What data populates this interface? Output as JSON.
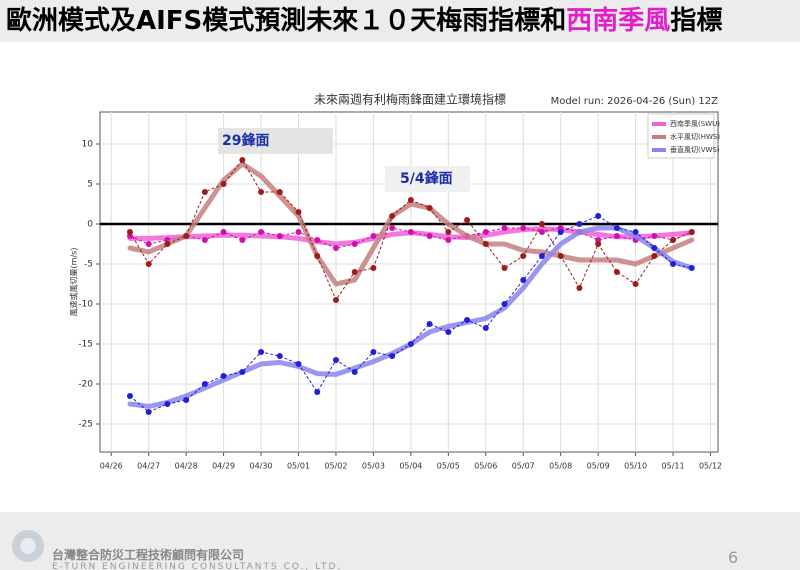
{
  "header": {
    "title": "歐洲模式及AIFS模式預測未來１０天梅雨指標和",
    "title_highlight": "西南季風",
    "title_end": "指標"
  },
  "chart_data": {
    "type": "line",
    "title": "未來兩週有利梅雨鋒面建立環境指標",
    "subtitle": "Model run: 2026-04-26 (Sun) 12Z",
    "y_label": "風速或風切量(m/s)",
    "annotations": [
      "29鋒面",
      "5/4鋒面"
    ],
    "x": [
      0.5,
      1,
      1.5,
      2,
      2.5,
      3,
      3.5,
      4,
      4.5,
      5,
      5.5,
      6,
      6.5,
      7,
      7.5,
      8,
      8.5,
      9,
      9.5,
      10,
      10.5,
      11,
      11.5,
      12,
      12.5,
      13,
      13.5,
      14,
      14.5,
      15,
      15.5
    ],
    "xlim": [
      -0.3,
      16.2
    ],
    "xticks": [
      {
        "value": 0,
        "label": "04/26"
      },
      {
        "value": 1,
        "label": "04/27"
      },
      {
        "value": 2,
        "label": "04/28"
      },
      {
        "value": 3,
        "label": "04/29"
      },
      {
        "value": 4,
        "label": "04/30"
      },
      {
        "value": 5,
        "label": "05/01"
      },
      {
        "value": 6,
        "label": "05/02"
      },
      {
        "value": 7,
        "label": "05/03"
      },
      {
        "value": 8,
        "label": "05/04"
      },
      {
        "value": 9,
        "label": "05/05"
      },
      {
        "value": 10,
        "label": "05/06"
      },
      {
        "value": 11,
        "label": "05/07"
      },
      {
        "value": 12,
        "label": "05/08"
      },
      {
        "value": 13,
        "label": "05/09"
      },
      {
        "value": 14,
        "label": "05/10"
      },
      {
        "value": 15,
        "label": "05/11"
      },
      {
        "value": 16,
        "label": "05/12"
      }
    ],
    "ylim": [
      -28.5,
      14
    ],
    "yticks": [
      10,
      5,
      0,
      -5,
      -10,
      -15,
      -20,
      -25
    ],
    "grid": true,
    "legend": "upper right",
    "series": [
      {
        "name": "西南季風(SWU)",
        "color": "#f060d8",
        "point_color": "#d010b0",
        "values": [
          -1.8,
          -1.8,
          -1.7,
          -1.6,
          -1.5,
          -1.4,
          -1.4,
          -1.5,
          -1.6,
          -1.8,
          -2.2,
          -2.5,
          -2.3,
          -1.8,
          -1.3,
          -1.1,
          -1.3,
          -1.6,
          -1.7,
          -1.4,
          -1,
          -0.7,
          -0.6,
          -0.7,
          -1,
          -1.3,
          -1.6,
          -1.6,
          -1.5,
          -1.3,
          -1.1
        ],
        "points": [
          -1.5,
          -2.5,
          -2,
          -1.5,
          -2,
          -1,
          -2,
          -1,
          -1.5,
          -1,
          -2,
          -3,
          -2.5,
          -1.5,
          -0.5,
          -1,
          -1.5,
          -2,
          -1.5,
          -1,
          -0.5,
          -0.5,
          -1,
          -0.5,
          -1,
          -2,
          -1.5,
          -2,
          -1.5,
          -2,
          -1
        ]
      },
      {
        "name": "水平風切(HWS)",
        "color": "#c48080",
        "point_color": "#a01c1c",
        "values": [
          -3,
          -3.5,
          -2.5,
          -1.5,
          2,
          5.5,
          7.5,
          6,
          3.5,
          1,
          -4,
          -7.5,
          -7,
          -3,
          1,
          2.5,
          2,
          0,
          -1.5,
          -2.5,
          -2.5,
          -3.3,
          -3.5,
          -4,
          -4.5,
          -4.5,
          -4.5,
          -5,
          -4,
          -3,
          -2
        ],
        "points": [
          -1,
          -5,
          -2.5,
          -1.5,
          4,
          5,
          8,
          4,
          4,
          1.5,
          -4,
          -9.5,
          -6,
          -5.5,
          1,
          3,
          2,
          -1,
          0.5,
          -2.5,
          -5.5,
          -4,
          0,
          -4,
          -8,
          -2.5,
          -6,
          -7.5,
          -4,
          -2,
          -1
        ]
      },
      {
        "name": "垂直風切(VWS)",
        "color": "#8c84ec",
        "point_color": "#2020d8",
        "values": [
          -22.5,
          -22.8,
          -22.3,
          -21.5,
          -20.5,
          -19.5,
          -18.5,
          -17.5,
          -17.3,
          -17.8,
          -18.7,
          -18.8,
          -18,
          -17.2,
          -16.2,
          -15,
          -13.5,
          -12.8,
          -12.3,
          -11.8,
          -10.5,
          -8,
          -5,
          -2.5,
          -1,
          -0.5,
          -0.5,
          -1.5,
          -3,
          -4.7,
          -5.5
        ],
        "points": [
          -21.5,
          -23.5,
          -22.5,
          -22,
          -20,
          -19,
          -18.5,
          -16,
          -16.5,
          -17.5,
          -21,
          -17,
          -18.5,
          -16,
          -16.5,
          -15,
          -12.5,
          -13.5,
          -12,
          -13,
          -10,
          -7,
          -4,
          -1,
          0,
          1,
          -0.5,
          -1,
          -3,
          -5,
          -5.5
        ]
      }
    ]
  },
  "footer": {
    "company": "台灣整合防災工程技術顧問有限公司",
    "company_en": "E-TURN ENGINEERING CONSULTANTS CO., LTD.",
    "page": "6"
  }
}
